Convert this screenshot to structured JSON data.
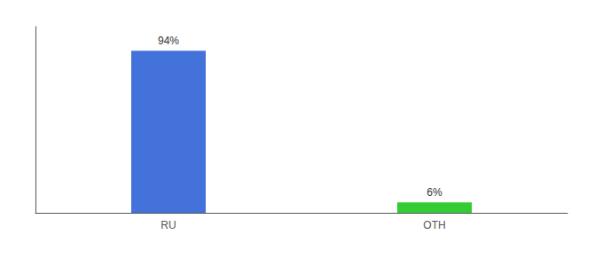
{
  "chart_data": {
    "type": "bar",
    "categories": [
      "RU",
      "OTH"
    ],
    "values": [
      94,
      6
    ],
    "value_labels": [
      "94%",
      "6%"
    ],
    "colors": [
      "#4472db",
      "#33cc33"
    ],
    "ylim": [
      0,
      108
    ],
    "grid": false,
    "data_labels": true,
    "tick_labels": "x"
  }
}
